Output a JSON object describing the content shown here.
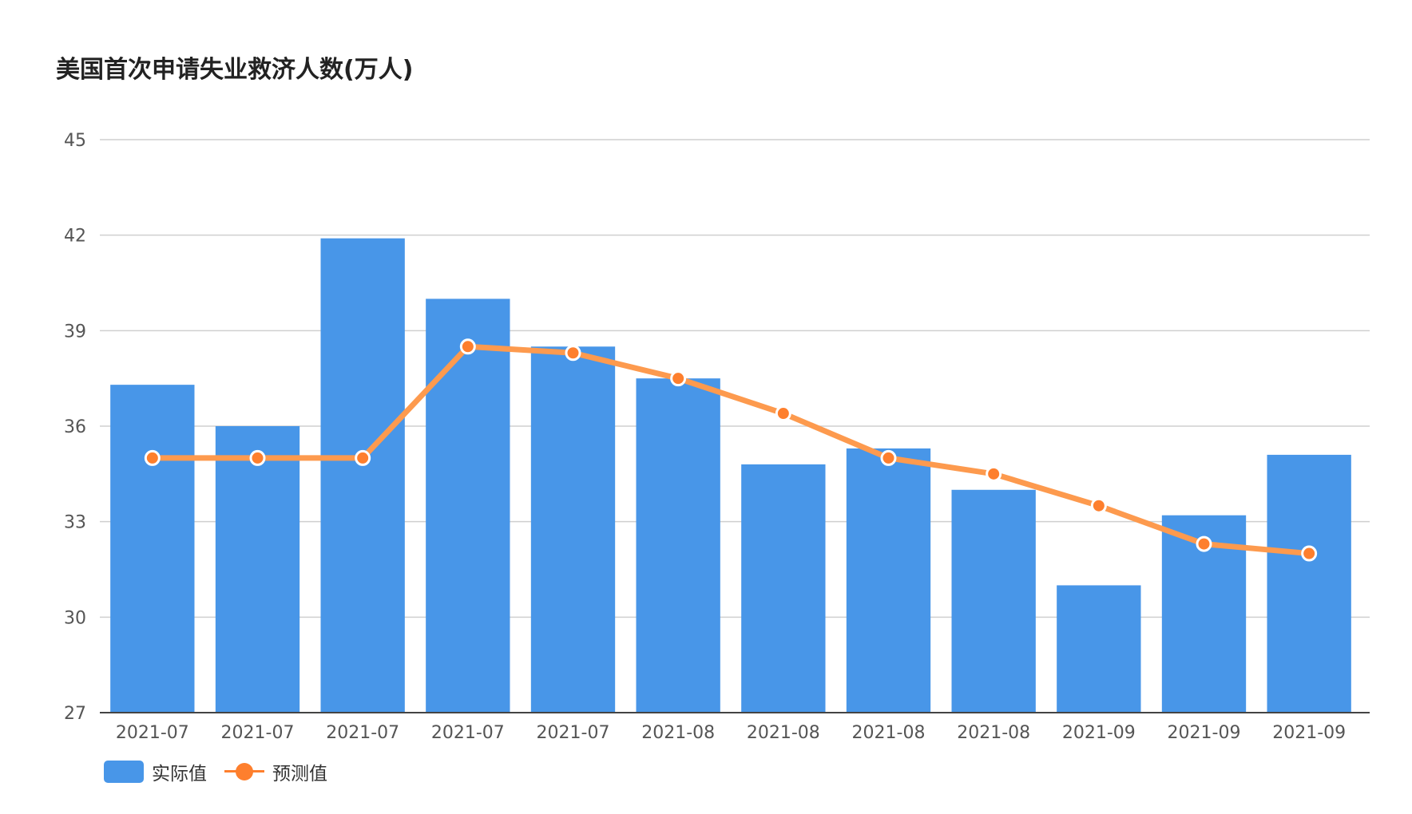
{
  "chart_data": {
    "type": "bar",
    "title": "美国首次申请失业救济人数(万人)",
    "categories": [
      "2021-07",
      "2021-07",
      "2021-07",
      "2021-07",
      "2021-07",
      "2021-08",
      "2021-08",
      "2021-08",
      "2021-08",
      "2021-09",
      "2021-09",
      "2021-09"
    ],
    "ylim": [
      27,
      45
    ],
    "yticks": [
      27,
      30,
      33,
      36,
      39,
      42,
      45
    ],
    "grid": true,
    "legend_position": "bottom-left",
    "series": [
      {
        "name": "实际值",
        "type": "bar",
        "color": "#4896e8",
        "values": [
          37.3,
          36.0,
          41.9,
          40.0,
          38.5,
          37.5,
          34.8,
          35.3,
          34.0,
          31.0,
          33.2,
          35.1
        ]
      },
      {
        "name": "预测值",
        "type": "line",
        "color": "#fe7f2d",
        "values": [
          35.0,
          35.0,
          35.0,
          38.5,
          38.3,
          37.5,
          36.4,
          35.0,
          34.5,
          33.5,
          32.3,
          32.0
        ]
      }
    ]
  }
}
